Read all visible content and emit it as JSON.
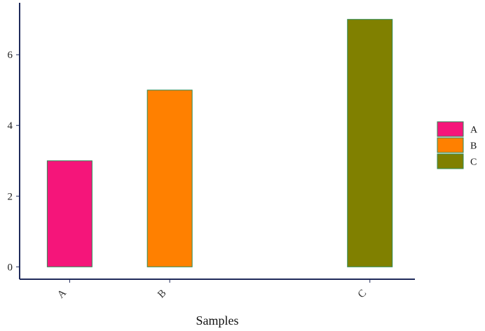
{
  "chart_data": {
    "type": "bar",
    "title": "",
    "xlabel": "Samples",
    "ylabel": "",
    "categories": [
      "A",
      "B",
      "C"
    ],
    "x": [
      1,
      2,
      4
    ],
    "values": [
      3,
      5,
      7
    ],
    "colors": [
      "#f5157a",
      "#ff8000",
      "#808000"
    ],
    "bar_edge_color": "#2e8b57",
    "ylim": [
      -0.35,
      7.35
    ],
    "xlim": [
      0.5,
      4.45
    ],
    "yticks": [
      0,
      2,
      4,
      6
    ],
    "grid": false,
    "legend": {
      "position": "right",
      "entries": [
        "A",
        "B",
        "C"
      ]
    }
  }
}
